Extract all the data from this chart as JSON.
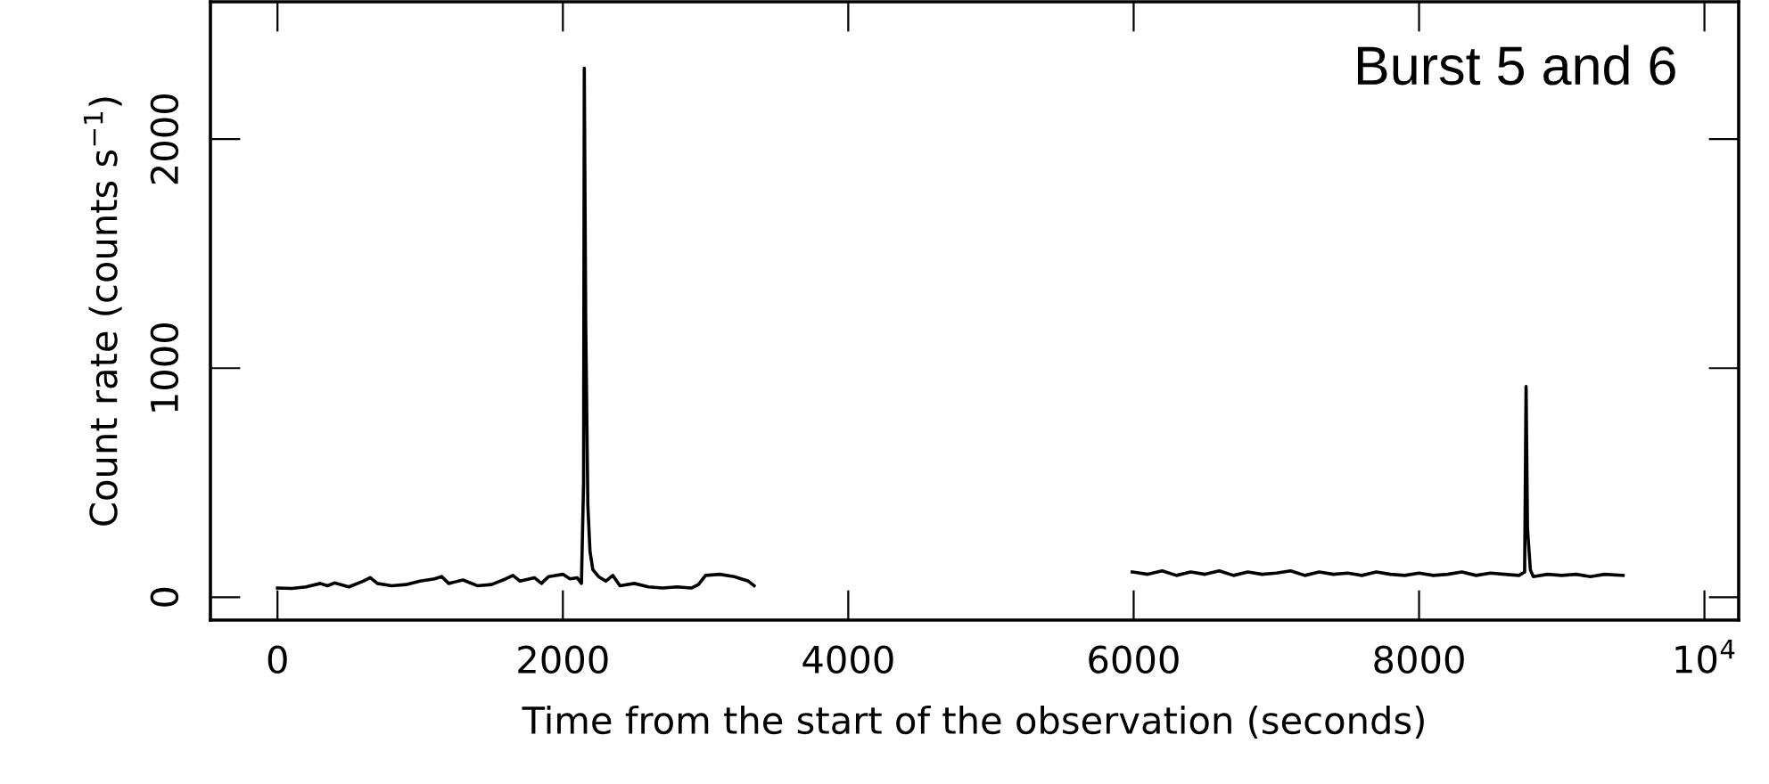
{
  "chart_data": {
    "type": "line",
    "xlabel": "Time from the start of the observation (seconds)",
    "ylabel": "Count rate (counts s$^{−1}$)",
    "annotations": [
      "Burst 5 and 6"
    ],
    "x": [
      0,
      100,
      200,
      300,
      350,
      400,
      500,
      600,
      650,
      700,
      800,
      900,
      1000,
      1100,
      1150,
      1200,
      1300,
      1400,
      1500,
      1600,
      1650,
      1700,
      1800,
      1850,
      1900,
      2000,
      2050,
      2100,
      2130,
      2145,
      2150,
      2160,
      2175,
      2190,
      2210,
      2250,
      2300,
      2350,
      2400,
      2500,
      2600,
      2700,
      2800,
      2900,
      2950,
      3000,
      3100,
      3200,
      3300,
      3340,
      4500,
      5990,
      6100,
      6200,
      6300,
      6400,
      6500,
      6600,
      6700,
      6800,
      6900,
      7000,
      7100,
      7200,
      7300,
      7400,
      7500,
      7600,
      7700,
      7800,
      7900,
      8000,
      8100,
      8200,
      8300,
      8400,
      8500,
      8600,
      8700,
      8740,
      8750,
      8760,
      8780,
      8800,
      8900,
      9000,
      9100,
      9200,
      9300,
      9430
    ],
    "series": [
      {
        "color": "#000000",
        "values": [
          40,
          38,
          45,
          60,
          50,
          62,
          45,
          70,
          85,
          60,
          50,
          55,
          70,
          80,
          90,
          60,
          75,
          50,
          55,
          80,
          95,
          70,
          85,
          60,
          90,
          100,
          80,
          85,
          60,
          500,
          2310,
          1200,
          400,
          200,
          120,
          90,
          70,
          95,
          50,
          60,
          45,
          40,
          45,
          40,
          55,
          95,
          100,
          90,
          70,
          50,
          null,
          110,
          100,
          115,
          95,
          110,
          100,
          115,
          95,
          110,
          100,
          105,
          115,
          95,
          110,
          100,
          105,
          95,
          110,
          100,
          95,
          105,
          95,
          100,
          110,
          95,
          105,
          100,
          95,
          110,
          920,
          300,
          120,
          90,
          100,
          95,
          100,
          90,
          100,
          95
        ]
      }
    ],
    "xlim": [
      -470,
      10240
    ],
    "ylim": [
      -100,
      2600
    ],
    "xticks": [
      0,
      2000,
      4000,
      6000,
      8000,
      {
        "value": 10000,
        "label": "10$^{4}$"
      }
    ],
    "yticks": [
      0,
      1000,
      2000
    ],
    "marker": "none",
    "line_style": "solid",
    "grid": false,
    "legend": false
  }
}
